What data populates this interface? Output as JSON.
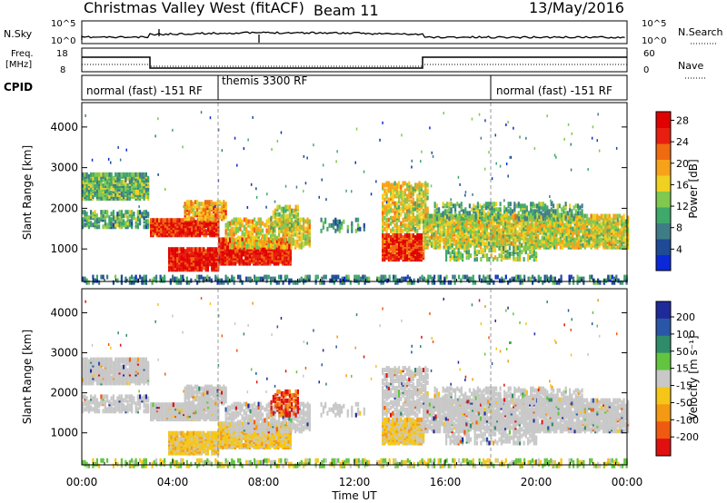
{
  "header": {
    "title": "Christmas Valley West (fitACF)",
    "beam": "Beam 11",
    "date": "13/May/2016"
  },
  "panels": {
    "nsky": {
      "label": "N.Sky",
      "ticks": [
        "10^5",
        "10^0"
      ],
      "right_label": "N.Search",
      "right_ticks": [
        "10^5",
        "10^0"
      ]
    },
    "freq": {
      "label_line1": "Freq.",
      "label_line2": "[MHz]",
      "ticks": [
        "18",
        "8"
      ],
      "right_label": "Nave",
      "right_ticks": [
        "60",
        "0"
      ]
    },
    "cpid": {
      "label": "CPID",
      "modes": [
        "normal (fast) -151 RF",
        "themis 3300 RF",
        "normal (fast) -151 RF"
      ]
    }
  },
  "chart_data": [
    {
      "type": "heatmap",
      "name": "power",
      "ylabel": "Slant Range [km]",
      "yticks": [
        "1000",
        "2000",
        "3000",
        "4000"
      ],
      "ylim": [
        200,
        4600
      ],
      "colorbar": {
        "label": "Power [dB]",
        "ticks": [
          "4",
          "8",
          "12",
          "16",
          "20",
          "24",
          "28"
        ],
        "colors": [
          "#0b28d8",
          "#1e4a96",
          "#3f7d86",
          "#3fa86b",
          "#7fc94e",
          "#f0d020",
          "#f7a21a",
          "#f06a10",
          "#e81e10",
          "#e00000"
        ]
      }
    },
    {
      "type": "heatmap",
      "name": "velocity",
      "ylabel": "Slant Range [km]",
      "yticks": [
        "1000",
        "2000",
        "3000",
        "4000"
      ],
      "ylim": [
        200,
        4600
      ],
      "colorbar": {
        "label": "Velocity [m s⁻¹]",
        "ticks": [
          "200",
          "100",
          "50",
          "15",
          "-15",
          "-50",
          "-100",
          "-200"
        ],
        "colors": [
          "#1f2a9a",
          "#2a56a8",
          "#2f8c6a",
          "#63c43f",
          "#c8c8c8",
          "#f5c617",
          "#f49a12",
          "#f05a10",
          "#e01010"
        ]
      }
    }
  ],
  "xaxis": {
    "label": "Time UT",
    "ticks": [
      "00:00",
      "04:00",
      "08:00",
      "12:00",
      "16:00",
      "20:00",
      "00:00"
    ]
  }
}
